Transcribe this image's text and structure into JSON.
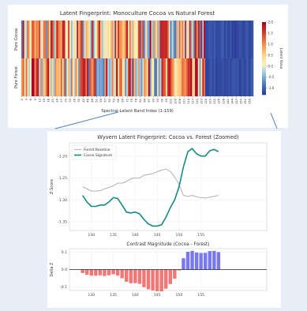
{
  "chart_data": [
    {
      "type": "heatmap",
      "title": "Latent Fingerprint: Monoculture Cocoa vs Natural Forest",
      "xlabel": "Spectral-Latent Band Index (1-159)",
      "ylabel": "",
      "rows": [
        "Pure Cocoa",
        "Pure Forest"
      ],
      "x_ticks": [
        "0",
        "3",
        "6",
        "9",
        "12",
        "15",
        "18",
        "21",
        "24",
        "27",
        "30",
        "33",
        "36",
        "39",
        "42",
        "45",
        "48",
        "51",
        "54",
        "57",
        "60",
        "63",
        "66",
        "69",
        "72",
        "75",
        "78",
        "81",
        "84",
        "87",
        "90",
        "93",
        "96",
        "99",
        "102",
        "105",
        "108",
        "111",
        "114",
        "117",
        "120",
        "123",
        "126",
        "129",
        "132",
        "135",
        "138",
        "141",
        "144",
        "147",
        "150",
        "153",
        "156"
      ],
      "colorbar": {
        "label": "Latent Value",
        "ticks": [
          "2.0",
          "1.5",
          "1.0",
          "0.5",
          "0.0",
          "-0.5",
          "-1.0"
        ],
        "range": [
          -1.3,
          2.0
        ]
      },
      "note_bands": {
        "high_latent_start": 126,
        "high_latent_end": 159
      }
    },
    {
      "type": "line",
      "title": "Wyvern Latent Fingerprint: Cocoa vs. Forest (Zoomed)",
      "xlabel": "",
      "ylabel": "Z-Score",
      "xlim": [
        125,
        170
      ],
      "ylim": [
        -1.37,
        -1.17
      ],
      "x_ticks": [
        "130",
        "135",
        "140",
        "145",
        "150",
        "155"
      ],
      "y_ticks": [
        "-1.20",
        "-1.25",
        "-1.30",
        "-1.35"
      ],
      "legend": "top-left",
      "series": [
        {
          "name": "Forest Baseline",
          "color": "#a9a9a9",
          "x": [
            128,
            129,
            130,
            131,
            132,
            133,
            134,
            135,
            136,
            137,
            138,
            139,
            140,
            141,
            142,
            143,
            144,
            145,
            146,
            147,
            148,
            149,
            150,
            151,
            152,
            153,
            154,
            155,
            156,
            157,
            158,
            159
          ],
          "y": [
            -1.27,
            -1.275,
            -1.28,
            -1.28,
            -1.279,
            -1.275,
            -1.272,
            -1.268,
            -1.262,
            -1.262,
            -1.258,
            -1.252,
            -1.25,
            -1.25,
            -1.244,
            -1.242,
            -1.24,
            -1.236,
            -1.232,
            -1.23,
            -1.235,
            -1.248,
            -1.265,
            -1.29,
            -1.292,
            -1.29,
            -1.293,
            -1.295,
            -1.296,
            -1.294,
            -1.292,
            -1.29
          ]
        },
        {
          "name": "Cocoa Signature",
          "color": "#178a80",
          "x": [
            128,
            129,
            130,
            131,
            132,
            133,
            134,
            135,
            136,
            137,
            138,
            139,
            140,
            141,
            142,
            143,
            144,
            145,
            146,
            147,
            148,
            149,
            150,
            151,
            152,
            153,
            154,
            155,
            156,
            157,
            158,
            159
          ],
          "y": [
            -1.29,
            -1.305,
            -1.315,
            -1.315,
            -1.312,
            -1.312,
            -1.305,
            -1.295,
            -1.297,
            -1.312,
            -1.328,
            -1.33,
            -1.328,
            -1.332,
            -1.345,
            -1.355,
            -1.36,
            -1.36,
            -1.357,
            -1.34,
            -1.318,
            -1.3,
            -1.27,
            -1.225,
            -1.19,
            -1.183,
            -1.195,
            -1.2,
            -1.2,
            -1.188,
            -1.185,
            -1.19
          ]
        }
      ]
    },
    {
      "type": "bar",
      "title": "Contrast Magnitude (Cocoa - Forest)",
      "xlabel": "",
      "ylabel": "Delta Z",
      "xlim": [
        125,
        170
      ],
      "ylim": [
        -0.12,
        0.12
      ],
      "x_ticks": [
        "130",
        "135",
        "140",
        "145",
        "150",
        "155"
      ],
      "y_ticks": [
        "0.1",
        "0.0",
        "-0.1"
      ],
      "positive_color": "#6060f0",
      "negative_color": "#f06060",
      "x": [
        128,
        129,
        130,
        131,
        132,
        133,
        134,
        135,
        136,
        137,
        138,
        139,
        140,
        141,
        142,
        143,
        144,
        145,
        146,
        147,
        148,
        149,
        150,
        151,
        152,
        153,
        154,
        155,
        156,
        157,
        158,
        159
      ],
      "values": [
        -0.02,
        -0.03,
        -0.035,
        -0.035,
        -0.033,
        -0.037,
        -0.033,
        -0.027,
        -0.035,
        -0.05,
        -0.07,
        -0.078,
        -0.078,
        -0.082,
        -0.101,
        -0.113,
        -0.12,
        -0.124,
        -0.125,
        -0.11,
        -0.083,
        -0.052,
        -0.005,
        0.065,
        0.102,
        0.107,
        0.098,
        0.095,
        0.096,
        0.106,
        0.107,
        0.1
      ]
    }
  ]
}
